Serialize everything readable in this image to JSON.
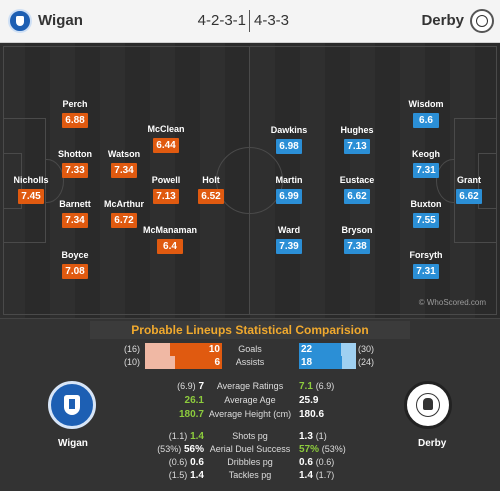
{
  "header": {
    "home_team": "Wigan",
    "away_team": "Derby",
    "home_formation": "4-2-3-1",
    "away_formation": "4-3-3"
  },
  "home_players": [
    {
      "name": "Perch",
      "rating": "6.88"
    },
    {
      "name": "Shotton",
      "rating": "7.33"
    },
    {
      "name": "Watson",
      "rating": "7.34"
    },
    {
      "name": "McClean",
      "rating": "6.44"
    },
    {
      "name": "Nicholls",
      "rating": "7.45"
    },
    {
      "name": "Powell",
      "rating": "7.13"
    },
    {
      "name": "Holt",
      "rating": "6.52"
    },
    {
      "name": "Barnett",
      "rating": "7.34"
    },
    {
      "name": "McArthur",
      "rating": "6.72"
    },
    {
      "name": "McManaman",
      "rating": "6.4"
    },
    {
      "name": "Boyce",
      "rating": "7.08"
    }
  ],
  "away_players": [
    {
      "name": "Wisdom",
      "rating": "6.6"
    },
    {
      "name": "Dawkins",
      "rating": "6.98"
    },
    {
      "name": "Hughes",
      "rating": "7.13"
    },
    {
      "name": "Keogh",
      "rating": "7.31"
    },
    {
      "name": "Martin",
      "rating": "6.99"
    },
    {
      "name": "Eustace",
      "rating": "6.62"
    },
    {
      "name": "Grant",
      "rating": "6.62"
    },
    {
      "name": "Buxton",
      "rating": "7.55"
    },
    {
      "name": "Ward",
      "rating": "7.39"
    },
    {
      "name": "Bryson",
      "rating": "7.38"
    },
    {
      "name": "Forsyth",
      "rating": "7.31"
    }
  ],
  "watermark": "© WhoScored.com",
  "comparison": {
    "title": "Probable Lineups Statistical Comparision",
    "goals": {
      "label": "Goals",
      "home": "10",
      "away": "22",
      "home_total": "(16)",
      "away_total": "(30)"
    },
    "assists": {
      "label": "Assists",
      "home": "6",
      "away": "18",
      "home_total": "(10)",
      "away_total": "(24)"
    },
    "rows": [
      {
        "label": "Average Ratings",
        "home_extra": "(6.9)",
        "home": "7",
        "away": "7.1",
        "away_extra": "(6.9)"
      },
      {
        "label": "Average Age",
        "home_extra": "",
        "home": "26.1",
        "away": "25.9",
        "away_extra": ""
      },
      {
        "label": "Average Height (cm)",
        "home_extra": "",
        "home": "180.7",
        "away": "180.6",
        "away_extra": ""
      },
      {
        "label": "Shots pg",
        "home_extra": "(1.1)",
        "home": "1.4",
        "away": "1.3",
        "away_extra": "(1)"
      },
      {
        "label": "Aerial Duel Success",
        "home_extra": "(53%)",
        "home": "56%",
        "away": "57%",
        "away_extra": "(53%)"
      },
      {
        "label": "Dribbles pg",
        "home_extra": "(0.6)",
        "home": "0.6",
        "away": "0.6",
        "away_extra": "(0.6)"
      },
      {
        "label": "Tackles pg",
        "home_extra": "(1.5)",
        "home": "1.4",
        "away": "1.4",
        "away_extra": "(1.7)"
      }
    ],
    "crest_home_label": "Wigan",
    "crest_away_label": "Derby"
  },
  "colors": {
    "home": "#e05a10",
    "away": "#2b8fd6",
    "highlight": "#8dcc3d",
    "title": "#f0a92e"
  }
}
